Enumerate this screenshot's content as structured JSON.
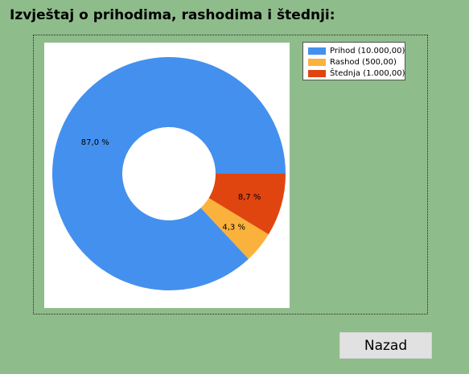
{
  "title": "Izvještaj o prihodima, rashodima i štednji:",
  "chart_data": {
    "type": "pie",
    "variant": "doughnut",
    "categories": [
      "Prihod",
      "Rashod",
      "Štednja"
    ],
    "values": [
      10000,
      500,
      1000
    ],
    "colors": [
      "#4490ee",
      "#fbb23c",
      "#e1450f"
    ],
    "data_labels": [
      "87,0 %",
      "4,3 %",
      "8,7 %"
    ],
    "legend": {
      "placement": "top-right",
      "entries": [
        "Prihod (10.000,00)",
        "Rashod (500,00)",
        "Štednja (1.000,00)"
      ]
    }
  },
  "buttons": {
    "back_label": "Nazad"
  }
}
